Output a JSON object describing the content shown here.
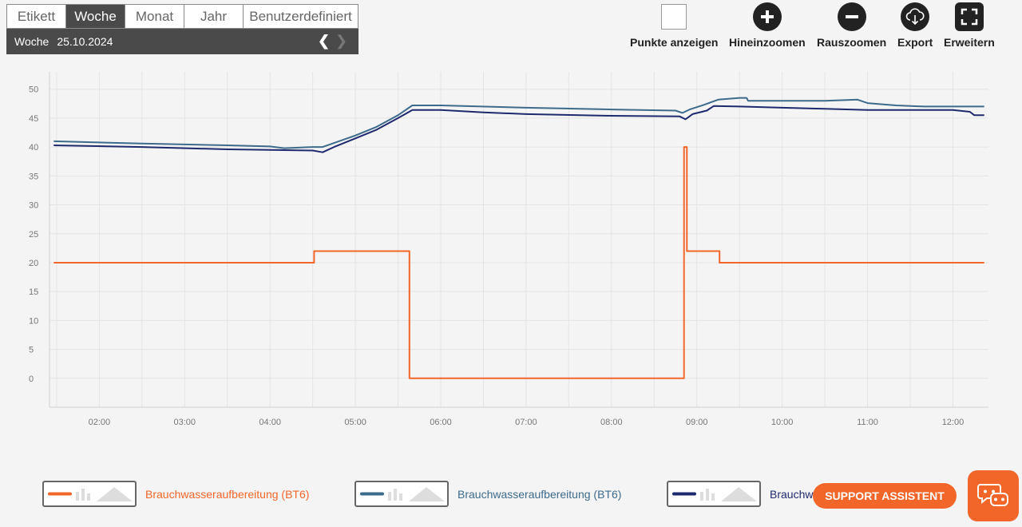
{
  "tabs": [
    {
      "label": "Etikett",
      "active": false
    },
    {
      "label": "Woche",
      "active": true
    },
    {
      "label": "Monat",
      "active": false
    },
    {
      "label": "Jahr",
      "active": false
    },
    {
      "label": "Benutzerdefiniert",
      "active": false
    }
  ],
  "period": {
    "label": "Woche",
    "date": "25.10.2024",
    "prev_icon": "chevron-left-icon",
    "next_icon": "chevron-right-icon"
  },
  "toolbar": {
    "show_points_label": "Punkte anzeigen",
    "zoom_in_label": "Hineinzoomen",
    "zoom_out_label": "Rauszoomen",
    "export_label": "Export",
    "expand_label": "Erweitern"
  },
  "legend": [
    {
      "label": "Brauchwasseraufbereitung (BT6)",
      "color": "#f2662a"
    },
    {
      "label": "Brauchwasseraufbereitung (BT6)",
      "color": "#3d6b8c"
    },
    {
      "label": "Brauchw",
      "color": "#1f2a6e"
    }
  ],
  "support": {
    "label": "SUPPORT ASSISTENT",
    "chat_icon": "chat-bot-icon"
  },
  "colors": {
    "accent": "#f2662a",
    "dark": "#4a4a4a"
  },
  "chart_data": {
    "type": "line",
    "title": "",
    "xlabel": "",
    "ylabel": "",
    "ylim": [
      -5,
      53
    ],
    "xlim": [
      "01:25",
      "12:25"
    ],
    "grid": true,
    "x_ticks": [
      "02:00",
      "03:00",
      "04:00",
      "05:00",
      "06:00",
      "07:00",
      "08:00",
      "09:00",
      "10:00",
      "11:00",
      "12:00"
    ],
    "y_ticks": [
      0,
      5,
      10,
      15,
      20,
      25,
      30,
      35,
      40,
      45,
      50
    ],
    "series": [
      {
        "name": "Brauchwasseraufbereitung (BT6)",
        "color": "#f2662a",
        "step": true,
        "points": [
          [
            "01:28",
            20
          ],
          [
            "04:31",
            20
          ],
          [
            "04:31",
            22
          ],
          [
            "05:38",
            22
          ],
          [
            "05:38",
            0
          ],
          [
            "08:51",
            0
          ],
          [
            "08:51",
            40
          ],
          [
            "08:53",
            40
          ],
          [
            "08:53",
            22
          ],
          [
            "09:16",
            22
          ],
          [
            "09:16",
            20
          ],
          [
            "12:22",
            20
          ]
        ]
      },
      {
        "name": "Brauchwasseraufbereitung (BT6)",
        "color": "#3d6b8c",
        "step": false,
        "points": [
          [
            "01:28",
            41
          ],
          [
            "02:30",
            40.6
          ],
          [
            "03:30",
            40.3
          ],
          [
            "04:00",
            40.1
          ],
          [
            "04:10",
            39.8
          ],
          [
            "04:30",
            40
          ],
          [
            "04:37",
            40
          ],
          [
            "04:45",
            40.7
          ],
          [
            "05:00",
            42
          ],
          [
            "05:15",
            43.5
          ],
          [
            "05:30",
            45.5
          ],
          [
            "05:40",
            47.2
          ],
          [
            "06:00",
            47.2
          ],
          [
            "07:00",
            46.8
          ],
          [
            "08:00",
            46.5
          ],
          [
            "08:45",
            46.3
          ],
          [
            "08:50",
            45.9
          ],
          [
            "08:55",
            46.5
          ],
          [
            "09:05",
            47.3
          ],
          [
            "09:15",
            48.2
          ],
          [
            "09:30",
            48.5
          ],
          [
            "09:35",
            48.5
          ],
          [
            "09:36",
            48
          ],
          [
            "10:00",
            48
          ],
          [
            "10:30",
            48
          ],
          [
            "10:53",
            48.2
          ],
          [
            "11:00",
            47.6
          ],
          [
            "11:20",
            47.2
          ],
          [
            "11:40",
            47
          ],
          [
            "12:22",
            47
          ]
        ]
      },
      {
        "name": "Brauchw",
        "color": "#1f2a6e",
        "step": false,
        "points": [
          [
            "01:28",
            40.3
          ],
          [
            "02:30",
            40
          ],
          [
            "03:30",
            39.6
          ],
          [
            "04:00",
            39.5
          ],
          [
            "04:30",
            39.4
          ],
          [
            "04:37",
            39.1
          ],
          [
            "04:45",
            40
          ],
          [
            "05:00",
            41.5
          ],
          [
            "05:15",
            43
          ],
          [
            "05:30",
            45
          ],
          [
            "05:40",
            46.4
          ],
          [
            "06:00",
            46.4
          ],
          [
            "06:30",
            46
          ],
          [
            "07:00",
            45.7
          ],
          [
            "08:00",
            45.4
          ],
          [
            "08:48",
            45.3
          ],
          [
            "08:52",
            44.8
          ],
          [
            "08:57",
            45.7
          ],
          [
            "09:07",
            46.3
          ],
          [
            "09:12",
            47.1
          ],
          [
            "09:30",
            47
          ],
          [
            "10:00",
            46.8
          ],
          [
            "10:30",
            46.6
          ],
          [
            "11:00",
            46.4
          ],
          [
            "12:00",
            46.4
          ],
          [
            "12:12",
            46.1
          ],
          [
            "12:15",
            45.5
          ],
          [
            "12:22",
            45.5
          ]
        ]
      }
    ]
  }
}
